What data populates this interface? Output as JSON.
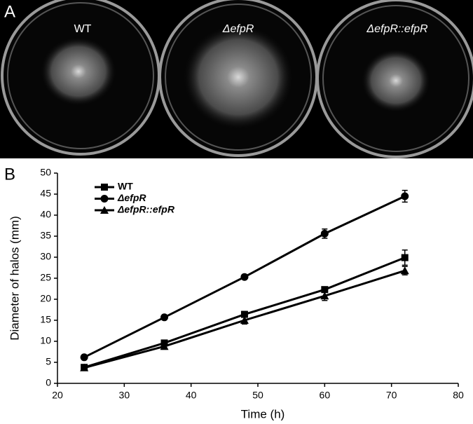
{
  "panel_a": {
    "label": "A",
    "strains": [
      "WT",
      "ΔefpR",
      "ΔefpR::efpR"
    ]
  },
  "chart_data": {
    "type": "line",
    "panel_label": "B",
    "x_label": "Time (h)",
    "y_label": "Diameter of halos (mm)",
    "xlim": [
      20,
      80
    ],
    "xticks": [
      20,
      30,
      40,
      50,
      60,
      70,
      80
    ],
    "ylim": [
      0,
      50
    ],
    "yticks": [
      0,
      5,
      10,
      15,
      20,
      25,
      30,
      35,
      40,
      45,
      50
    ],
    "x": [
      24,
      36,
      48,
      60,
      72
    ],
    "legend": "upper left",
    "series": [
      {
        "name": "WT",
        "color": "#000000",
        "marker": "square",
        "values": [
          3.8,
          9.6,
          16.4,
          22.3,
          29.9
        ],
        "errors": [
          0.4,
          0.5,
          0.7,
          0.6,
          1.8
        ]
      },
      {
        "name": "ΔefpR",
        "color": "#000000",
        "marker": "circle",
        "values": [
          6.2,
          15.7,
          25.3,
          35.6,
          44.5
        ],
        "errors": [
          0.3,
          0.5,
          0.5,
          1.1,
          1.4
        ]
      },
      {
        "name": "ΔefpR::efpR",
        "color": "#000000",
        "marker": "triangle",
        "values": [
          3.7,
          8.8,
          15.0,
          20.8,
          26.8
        ],
        "errors": [
          0.3,
          0.7,
          0.9,
          1.1,
          1.0
        ]
      }
    ]
  }
}
